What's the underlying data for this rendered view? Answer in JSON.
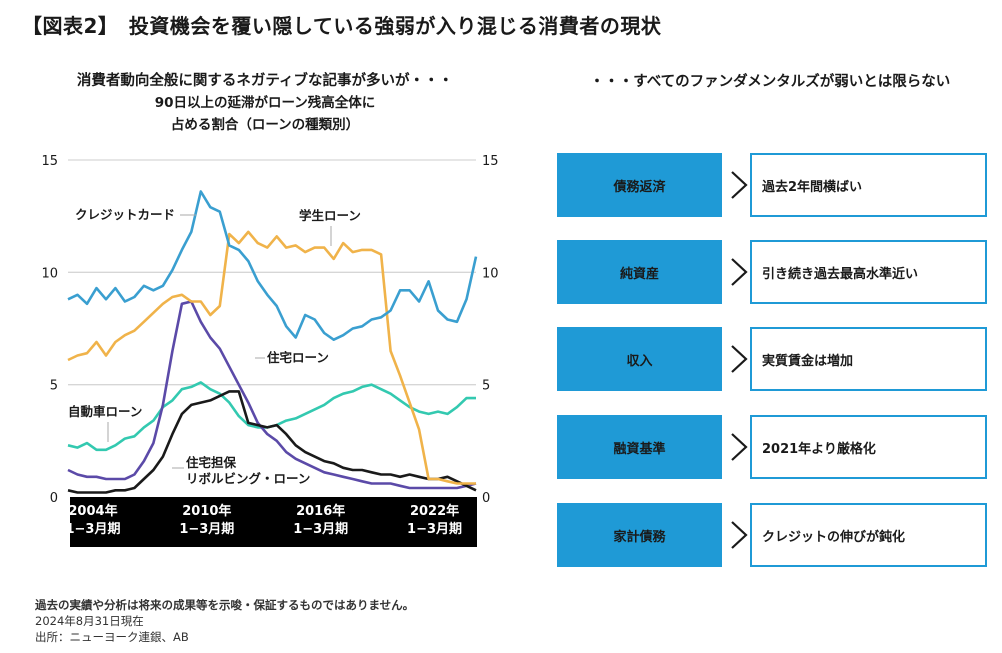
{
  "title": "【図表2】　投資機会を覆い隠している強弱が入り混じる消費者の現状",
  "left_panel": {
    "heading": "消費者動向全般に関するネガティブな記事が多いが・・・",
    "subheading_line1": "90日以上の延滞がローン残高全体に",
    "subheading_line2": "占める割合（ローンの種類別）"
  },
  "right_panel": {
    "heading": "・・・すべてのファンダメンタルズが弱いとは限らない",
    "rows": [
      {
        "label": "債務返済",
        "value": "過去2年間横ばい"
      },
      {
        "label": "純資産",
        "value": "引き続き過去最高水準近い"
      },
      {
        "label": "収入",
        "value": "実質賃金は増加"
      },
      {
        "label": "融資基準",
        "value": "2021年より厳格化"
      },
      {
        "label": "家計債務",
        "value": "クレジットの伸びが鈍化"
      }
    ]
  },
  "footer": {
    "disclaimer": "過去の実績や分析は将来の成果等を示唆・保証するものではありません。",
    "as_of": "2024年8月31日現在",
    "source": "出所：ニューヨーク連銀、AB"
  },
  "chart_data": {
    "type": "line",
    "title": "90日以上の延滞がローン残高全体に占める割合（ローンの種類別）",
    "xlabel": "",
    "ylabel": "",
    "ylim": [
      0,
      15
    ],
    "yticks": [
      0,
      5,
      10,
      15
    ],
    "ytick_labels_left": [
      "0",
      "5",
      "10",
      "15"
    ],
    "ytick_labels_right": [
      "0",
      "5",
      "10",
      "15"
    ],
    "xlim": [
      2003.0,
      2024.5
    ],
    "xtick_labels": [
      {
        "year": "2004年",
        "period": "1−3月期",
        "x": 2004.0
      },
      {
        "year": "2010年",
        "period": "1−3月期",
        "x": 2010.0
      },
      {
        "year": "2016年",
        "period": "1−3月期",
        "x": 2016.0
      },
      {
        "year": "2022年",
        "period": "1−3月期",
        "x": 2022.0
      }
    ],
    "grid": true,
    "x": [
      2003.0,
      2003.5,
      2004.0,
      2004.5,
      2005.0,
      2005.5,
      2006.0,
      2006.5,
      2007.0,
      2007.5,
      2008.0,
      2008.5,
      2009.0,
      2009.5,
      2010.0,
      2010.5,
      2011.0,
      2011.5,
      2012.0,
      2012.5,
      2013.0,
      2013.5,
      2014.0,
      2014.5,
      2015.0,
      2015.5,
      2016.0,
      2016.5,
      2017.0,
      2017.5,
      2018.0,
      2018.5,
      2019.0,
      2019.5,
      2020.0,
      2020.5,
      2021.0,
      2021.5,
      2022.0,
      2022.5,
      2023.0,
      2023.5,
      2024.0,
      2024.5
    ],
    "series": [
      {
        "name": "クレジットカード",
        "color": "#3a9fd0",
        "values": [
          8.8,
          9.0,
          8.6,
          9.3,
          8.8,
          9.3,
          8.7,
          8.9,
          9.4,
          9.2,
          9.4,
          10.1,
          11.0,
          11.8,
          13.6,
          12.9,
          12.7,
          11.2,
          11.0,
          10.5,
          9.6,
          9.0,
          8.5,
          7.6,
          7.1,
          8.1,
          7.9,
          7.3,
          7.0,
          7.2,
          7.5,
          7.6,
          7.9,
          8.0,
          8.3,
          9.2,
          9.2,
          8.7,
          9.6,
          8.3,
          7.9,
          7.8,
          8.8,
          10.7
        ]
      },
      {
        "name": "学生ローン",
        "color": "#f0b34a",
        "values": [
          6.1,
          6.3,
          6.4,
          6.9,
          6.3,
          6.9,
          7.2,
          7.4,
          7.8,
          8.2,
          8.6,
          8.9,
          9.0,
          8.7,
          8.7,
          8.1,
          8.5,
          11.7,
          11.3,
          11.8,
          11.3,
          11.1,
          11.6,
          11.1,
          11.2,
          10.9,
          11.1,
          11.1,
          10.6,
          11.3,
          10.9,
          11.0,
          11.0,
          10.8,
          6.5,
          5.4,
          4.2,
          3.0,
          0.8,
          0.8,
          0.7,
          0.6,
          0.6,
          0.6
        ]
      },
      {
        "name": "住宅ローン",
        "color": "#5b4aa8",
        "values": [
          1.2,
          1.0,
          0.9,
          0.9,
          0.8,
          0.8,
          0.8,
          1.0,
          1.6,
          2.4,
          4.1,
          6.5,
          8.6,
          8.7,
          7.8,
          7.1,
          6.6,
          5.8,
          5.0,
          4.2,
          3.3,
          2.8,
          2.5,
          2.0,
          1.7,
          1.5,
          1.3,
          1.1,
          1.0,
          0.9,
          0.8,
          0.7,
          0.6,
          0.6,
          0.6,
          0.5,
          0.4,
          0.4,
          0.4,
          0.4,
          0.4,
          0.4,
          0.5,
          0.6
        ]
      },
      {
        "name": "自動車ローン",
        "color": "#33c9b0",
        "values": [
          2.3,
          2.2,
          2.4,
          2.1,
          2.1,
          2.3,
          2.6,
          2.7,
          3.1,
          3.4,
          4.0,
          4.3,
          4.8,
          4.9,
          5.1,
          4.8,
          4.6,
          4.2,
          3.6,
          3.2,
          3.1,
          3.1,
          3.2,
          3.4,
          3.5,
          3.7,
          3.9,
          4.1,
          4.4,
          4.6,
          4.7,
          4.9,
          5.0,
          4.8,
          4.6,
          4.3,
          4.0,
          3.8,
          3.7,
          3.8,
          3.7,
          4.0,
          4.4,
          4.4
        ]
      },
      {
        "name": "住宅担保リボルビング・ローン",
        "color": "#1a1a1a",
        "values": [
          0.3,
          0.2,
          0.2,
          0.2,
          0.2,
          0.3,
          0.3,
          0.4,
          0.8,
          1.2,
          1.8,
          2.8,
          3.7,
          4.1,
          4.2,
          4.3,
          4.5,
          4.7,
          4.7,
          3.3,
          3.2,
          3.1,
          3.2,
          2.8,
          2.3,
          2.0,
          1.8,
          1.6,
          1.5,
          1.3,
          1.2,
          1.2,
          1.1,
          1.0,
          1.0,
          0.9,
          1.0,
          0.9,
          0.8,
          0.8,
          0.9,
          0.7,
          0.5,
          0.3
        ]
      }
    ],
    "annotations": [
      {
        "text": "クレジットカード",
        "series": "クレジットカード"
      },
      {
        "text": "学生ローン",
        "series": "学生ローン"
      },
      {
        "text": "住宅ローン",
        "series": "住宅ローン"
      },
      {
        "text": "自動車ローン",
        "series": "自動車ローン"
      },
      {
        "text": "住宅担保",
        "series": "住宅担保リボルビング・ローン"
      },
      {
        "text": "リボルビング・ローン",
        "series": "住宅担保リボルビング・ローン"
      }
    ]
  }
}
